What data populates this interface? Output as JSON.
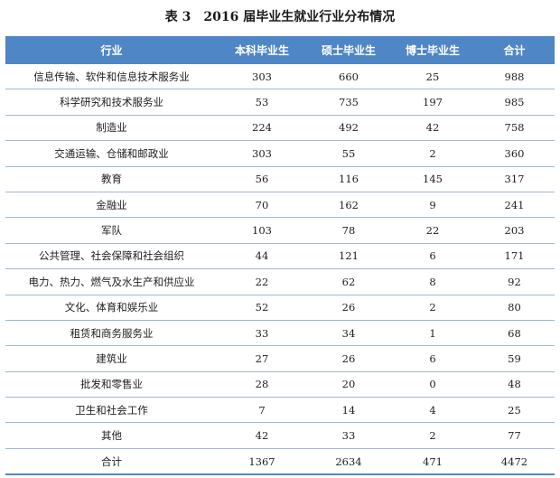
{
  "caption": "表 3　2016 届毕业生就业行业分布情况",
  "headers": [
    "行业",
    "本科毕业生",
    "硕士毕业生",
    "博士毕业生",
    "合计"
  ],
  "rows": [
    [
      "信息传输、软件和信息技术服务业",
      "303",
      "660",
      "25",
      "988"
    ],
    [
      "科学研究和技术服务业",
      "53",
      "735",
      "197",
      "985"
    ],
    [
      "制造业",
      "224",
      "492",
      "42",
      "758"
    ],
    [
      "交通运输、仓储和邮政业",
      "303",
      "55",
      "2",
      "360"
    ],
    [
      "教育",
      "56",
      "116",
      "145",
      "317"
    ],
    [
      "金融业",
      "70",
      "162",
      "9",
      "241"
    ],
    [
      "军队",
      "103",
      "78",
      "22",
      "203"
    ],
    [
      "公共管理、社会保障和社会组织",
      "44",
      "121",
      "6",
      "171"
    ],
    [
      "电力、热力、燃气及水生产和供应业",
      "22",
      "62",
      "8",
      "92"
    ],
    [
      "文化、体育和娱乐业",
      "52",
      "26",
      "2",
      "80"
    ],
    [
      "租赁和商务服务业",
      "33",
      "34",
      "1",
      "68"
    ],
    [
      "建筑业",
      "27",
      "26",
      "6",
      "59"
    ],
    [
      "批发和零售业",
      "28",
      "20",
      "0",
      "48"
    ],
    [
      "卫生和社会工作",
      "7",
      "14",
      "4",
      "25"
    ],
    [
      "其他",
      "42",
      "33",
      "2",
      "77"
    ]
  ],
  "total": [
    "合计",
    "1367",
    "2634",
    "471",
    "4472"
  ],
  "colors": {
    "header_bg": "#4f86c6",
    "header_text": "#ffffff",
    "row_divider": "#9fb8d8"
  }
}
